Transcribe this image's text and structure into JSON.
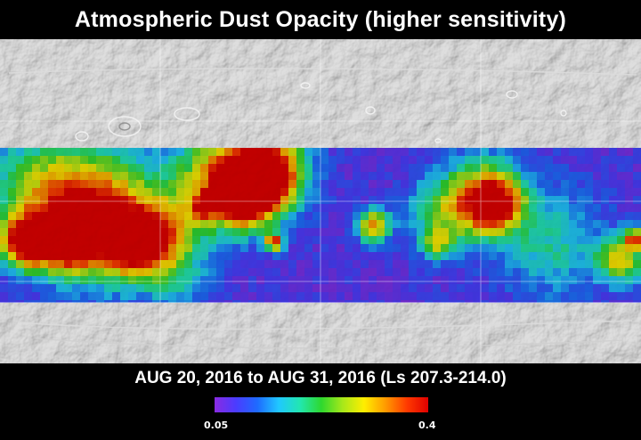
{
  "title": "Atmospheric Dust Opacity (higher sensitivity)",
  "date_range": "AUG 20, 2016 to AUG 31, 2016 (Ls 207.3-214.0)",
  "colorbar": {
    "min_label": "0.05",
    "max_label": "0.4",
    "colors": [
      "#8a2be2",
      "#4b3cff",
      "#1e6bff",
      "#20c8ff",
      "#22e7b0",
      "#2ed82e",
      "#a8e81a",
      "#ffee00",
      "#ff9a00",
      "#ff3a00",
      "#e00000"
    ]
  },
  "map": {
    "grid": "on",
    "base_color": "#b9b9b9"
  }
}
